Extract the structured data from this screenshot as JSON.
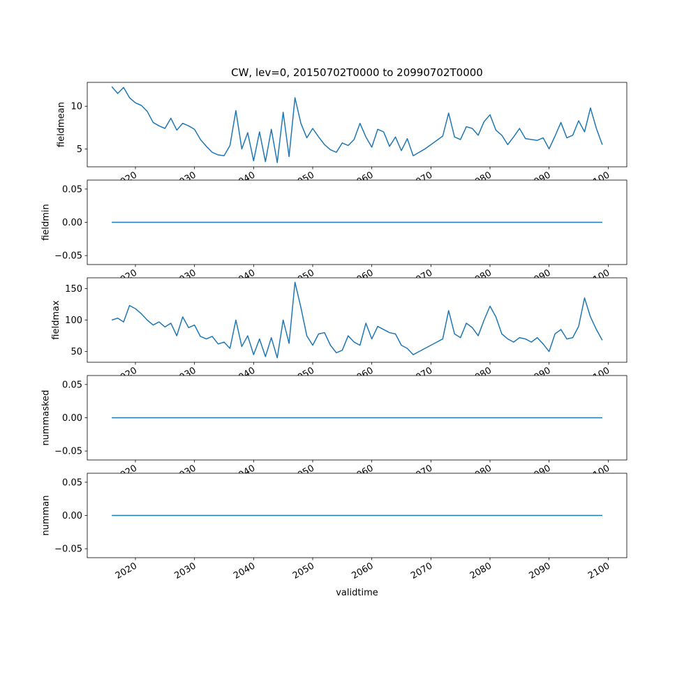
{
  "figure": {
    "title": "CW, lev=0, 20150702T0000 to 20990702T0000",
    "background": "#ffffff",
    "line_color": "#1f77b4"
  },
  "x_axis": {
    "label": "validtime",
    "start_year": 2016,
    "end_year": 2099,
    "step": 1,
    "xlim": [
      2011.85,
      2103.15
    ],
    "tick_values": [
      2020,
      2030,
      2040,
      2050,
      2060,
      2070,
      2080,
      2090,
      2100
    ],
    "tick_labels": [
      "2020",
      "2030",
      "2040",
      "2050",
      "2060",
      "2070",
      "2080",
      "2090",
      "2100"
    ]
  },
  "chart_data": [
    {
      "type": "line",
      "ylabel": "fieldmean",
      "ylim": [
        2.9,
        12.8
      ],
      "ytick_values": [
        5,
        10
      ],
      "ytick_labels": [
        "5",
        "10"
      ],
      "values": [
        12.3,
        11.5,
        12.2,
        11.0,
        10.4,
        10.1,
        9.4,
        8.1,
        7.7,
        7.4,
        8.6,
        7.2,
        8.0,
        7.7,
        7.3,
        6.1,
        5.3,
        4.6,
        4.3,
        4.2,
        5.4,
        9.5,
        5.0,
        6.9,
        3.6,
        7.0,
        3.5,
        7.3,
        3.4,
        9.3,
        4.1,
        11.0,
        8.0,
        6.3,
        7.4,
        6.4,
        5.5,
        4.9,
        4.6,
        5.7,
        5.4,
        6.1,
        8.0,
        6.4,
        5.2,
        7.3,
        7.0,
        5.3,
        6.4,
        4.8,
        6.2,
        4.2,
        4.6,
        5.0,
        5.5,
        6.0,
        6.5,
        9.2,
        6.4,
        6.1,
        7.6,
        7.4,
        6.6,
        8.2,
        9.0,
        7.2,
        6.6,
        5.5,
        6.4,
        7.4,
        6.2,
        6.1,
        6.0,
        6.3,
        5.0,
        6.5,
        8.1,
        6.3,
        6.6,
        8.3,
        7.0,
        9.8,
        7.4,
        5.5
      ]
    },
    {
      "type": "line",
      "ylabel": "fieldmin",
      "ylim": [
        -0.0635,
        0.0635
      ],
      "ytick_values": [
        -0.05,
        0.0,
        0.05
      ],
      "ytick_labels": [
        "−0.05",
        "0.00",
        "0.05"
      ],
      "values_constant": 0
    },
    {
      "type": "line",
      "ylabel": "fieldmax",
      "ylim": [
        33,
        167
      ],
      "ytick_values": [
        50,
        100,
        150
      ],
      "ytick_labels": [
        "50",
        "100",
        "150"
      ],
      "values": [
        100,
        103,
        97,
        123,
        118,
        110,
        100,
        92,
        97,
        89,
        95,
        75,
        105,
        88,
        92,
        74,
        70,
        74,
        62,
        65,
        55,
        100,
        58,
        75,
        45,
        70,
        42,
        72,
        40,
        100,
        63,
        160,
        120,
        75,
        60,
        78,
        80,
        60,
        48,
        52,
        75,
        65,
        60,
        95,
        70,
        90,
        85,
        80,
        78,
        60,
        55,
        45,
        50,
        55,
        60,
        65,
        70,
        115,
        78,
        72,
        95,
        88,
        75,
        100,
        122,
        105,
        78,
        70,
        65,
        72,
        70,
        65,
        72,
        62,
        50,
        78,
        85,
        70,
        72,
        90,
        135,
        105,
        85,
        68
      ]
    },
    {
      "type": "line",
      "ylabel": "nummasked",
      "ylim": [
        -0.0635,
        0.0635
      ],
      "ytick_values": [
        -0.05,
        0.0,
        0.05
      ],
      "ytick_labels": [
        "−0.05",
        "0.00",
        "0.05"
      ],
      "values_constant": 0
    },
    {
      "type": "line",
      "ylabel": "numman",
      "ylim": [
        -0.0635,
        0.0635
      ],
      "ytick_values": [
        -0.05,
        0.0,
        0.05
      ],
      "ytick_labels": [
        "−0.05",
        "0.00",
        "0.05"
      ],
      "values_constant": 0
    }
  ]
}
